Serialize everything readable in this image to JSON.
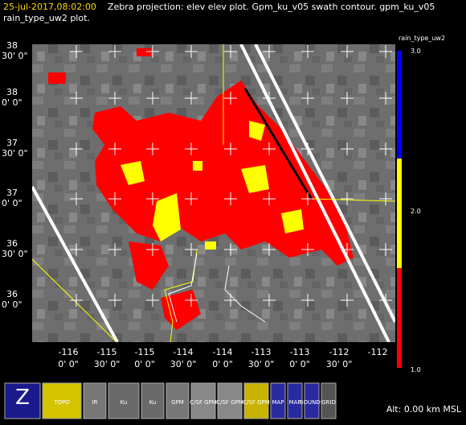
{
  "header": {
    "time": "25-jul-2017,08:02:00",
    "line1": "Zebra projection: elev elev  plot.  Gpm_ku_v05 swath contour.  gpm_ku_v05",
    "line2": "rain_type_uw2  plot."
  },
  "lat_labels": [
    [
      "38",
      "30' 0\""
    ],
    [
      "38",
      "0' 0\""
    ],
    [
      "37",
      "30' 0\""
    ],
    [
      "37",
      "0' 0\""
    ],
    [
      "36",
      "30' 0\""
    ],
    [
      "36",
      "0' 0\""
    ]
  ],
  "lon_labels": [
    [
      "-116",
      "0' 0\""
    ],
    [
      "-115",
      "30' 0\""
    ],
    [
      "-115",
      "0' 0\""
    ],
    [
      "-114",
      "30' 0\""
    ],
    [
      "-114",
      "0' 0\""
    ],
    [
      "-113",
      "30' 0\""
    ],
    [
      "-113",
      "0' 0\""
    ],
    [
      "-112",
      "30' 0\""
    ],
    [
      "-112",
      ""
    ]
  ],
  "colorbar": {
    "title": "rain_type_uw2",
    "labels": [
      "3.0",
      "2.0",
      "1.0"
    ]
  },
  "toolbar": {
    "buttons": [
      "Z",
      "TOPO",
      "IR",
      "Ku",
      "Ku",
      "GPM",
      "C/SF GPM",
      "C/SF GPM",
      "C/SF GPM",
      "MAP",
      "MAP",
      "BOUNDS",
      "GRID"
    ],
    "altitude": "Alt: 0.00 km MSL"
  }
}
